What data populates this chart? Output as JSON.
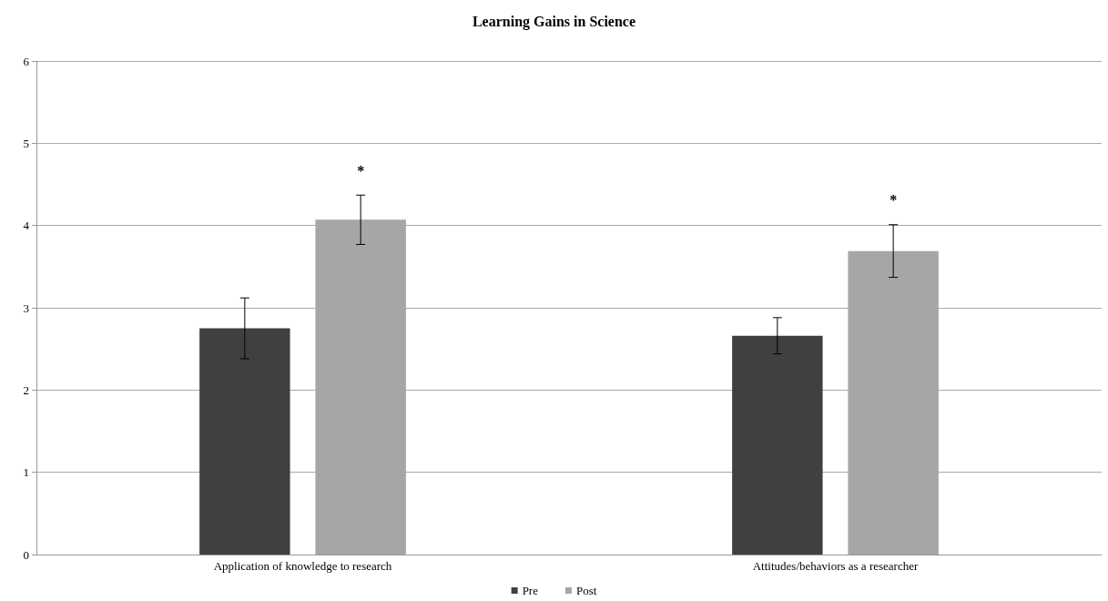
{
  "chart_data": {
    "type": "bar",
    "title": "Learning Gains in Science",
    "categories": [
      "Application of knowledge to research",
      "Attitudes/behaviors as a researcher"
    ],
    "series": [
      {
        "name": "Pre",
        "color": "#404040",
        "values": [
          2.75,
          2.66
        ],
        "errors": [
          0.37,
          0.22
        ]
      },
      {
        "name": "Post",
        "color": "#a6a6a6",
        "values": [
          4.07,
          3.69
        ],
        "errors": [
          0.3,
          0.32
        ]
      }
    ],
    "annotations": [
      "*",
      "*"
    ],
    "ylim": [
      0,
      6
    ],
    "yticks": [
      0,
      1,
      2,
      3,
      4,
      5,
      6
    ],
    "grid": "y",
    "legend": "bottom"
  }
}
